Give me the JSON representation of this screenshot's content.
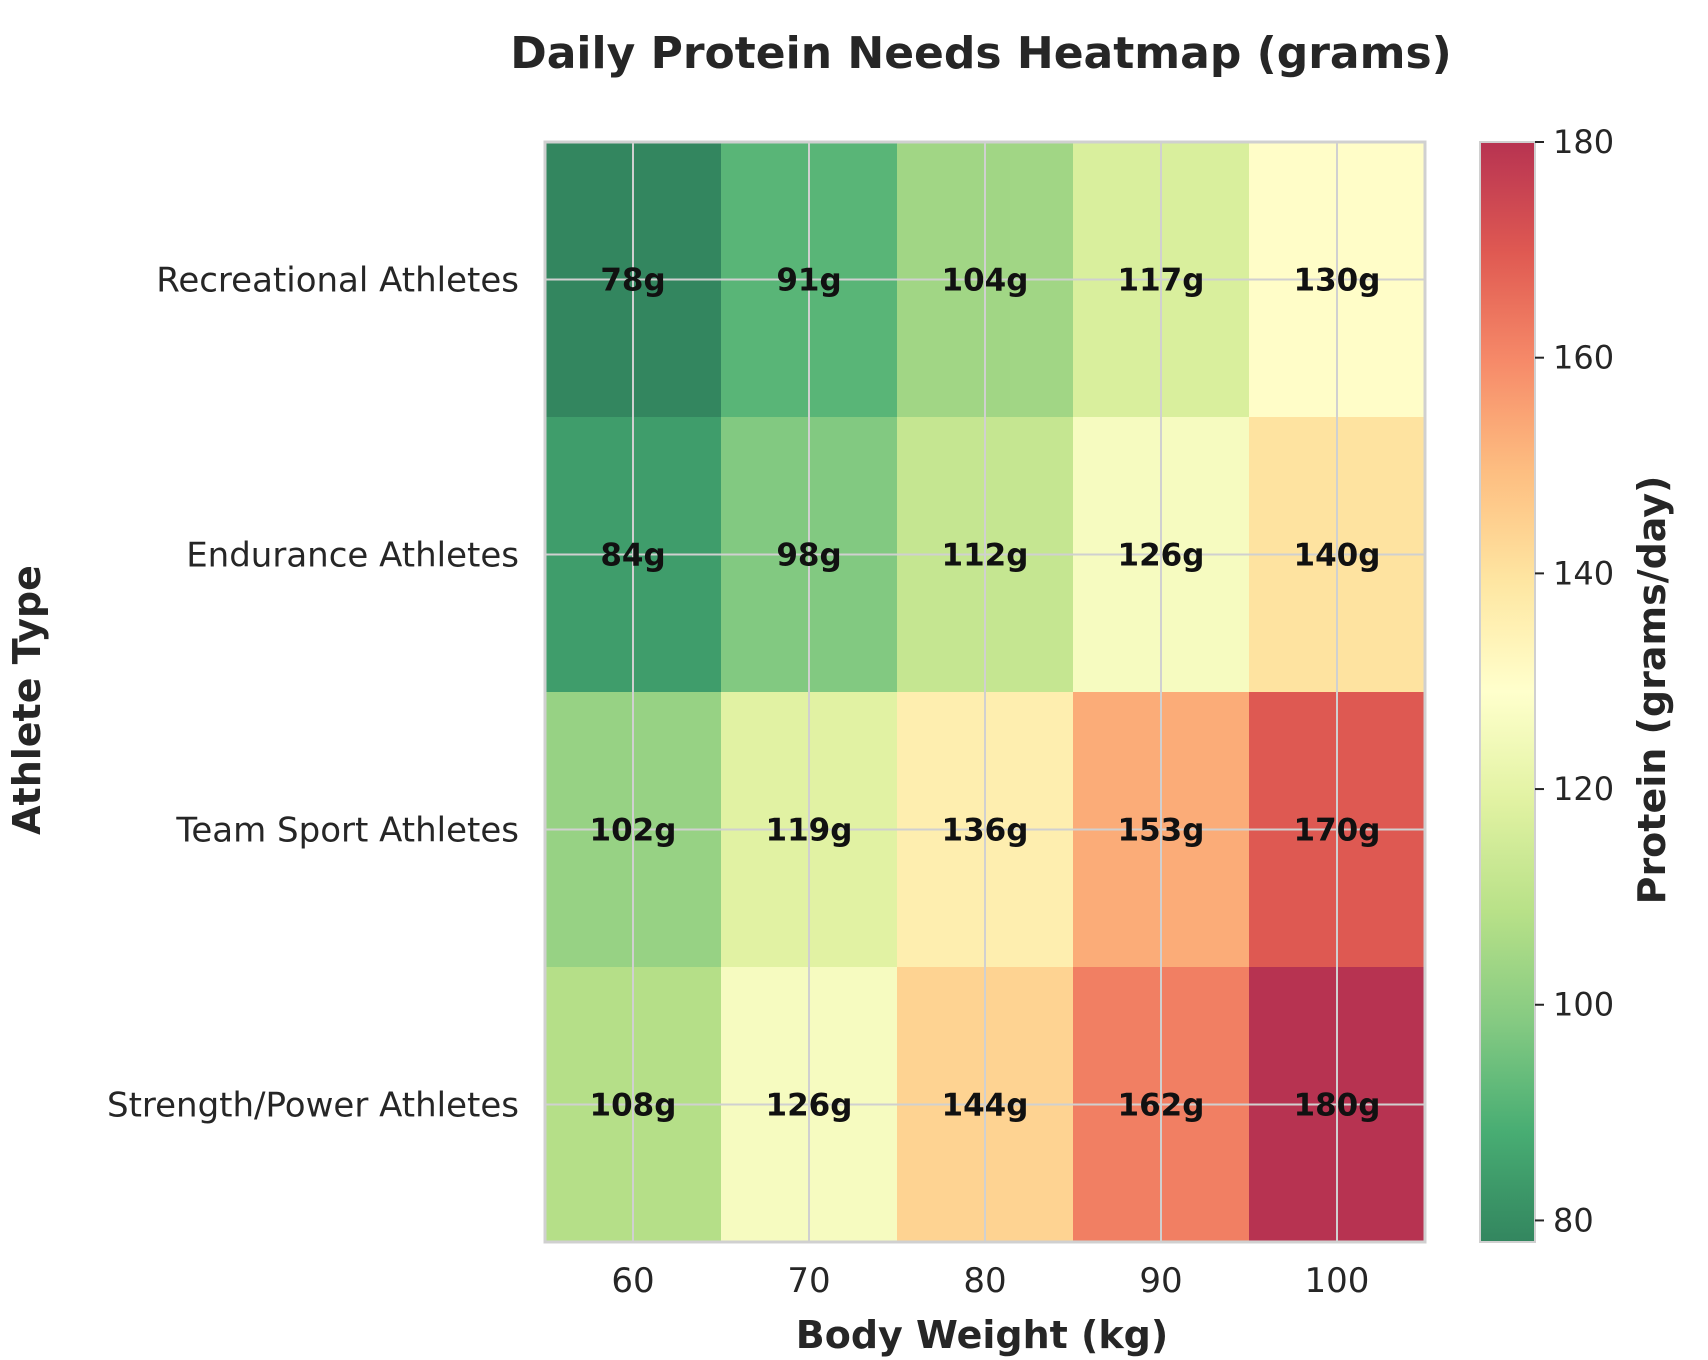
{
  "chart_data": {
    "type": "heatmap",
    "title": "Daily Protein Needs Heatmap (grams)",
    "xlabel": "Body Weight (kg)",
    "ylabel": "Athlete Type",
    "x_categories": [
      "60",
      "70",
      "80",
      "90",
      "100"
    ],
    "y_categories": [
      "Recreational Athletes",
      "Endurance Athletes",
      "Team Sport Athletes",
      "Strength/Power Athletes"
    ],
    "values": [
      [
        78,
        91,
        104,
        117,
        130
      ],
      [
        84,
        98,
        112,
        126,
        140
      ],
      [
        102,
        119,
        136,
        153,
        170
      ],
      [
        108,
        126,
        144,
        162,
        180
      ]
    ],
    "value_suffix": "g",
    "colorbar": {
      "label": "Protein (grams/day)",
      "range": [
        78,
        180
      ],
      "ticks": [
        80,
        100,
        120,
        140,
        160,
        180
      ],
      "colormap": "RdYlGn_r"
    },
    "grid": true
  },
  "colors": {
    "grid": "#d0d0d0",
    "text": "#262626"
  }
}
